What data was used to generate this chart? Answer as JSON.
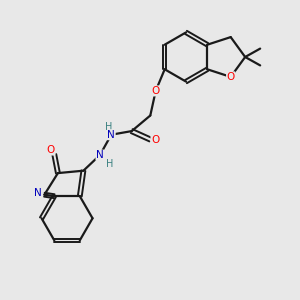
{
  "bg_color": "#e8e8e8",
  "atom_colors": {
    "O": "#ff0000",
    "N": "#0000bb",
    "C": "#1a1a1a",
    "H": "#3a8080"
  },
  "bond_color": "#1a1a1a",
  "figsize": [
    3.0,
    3.0
  ],
  "dpi": 100
}
